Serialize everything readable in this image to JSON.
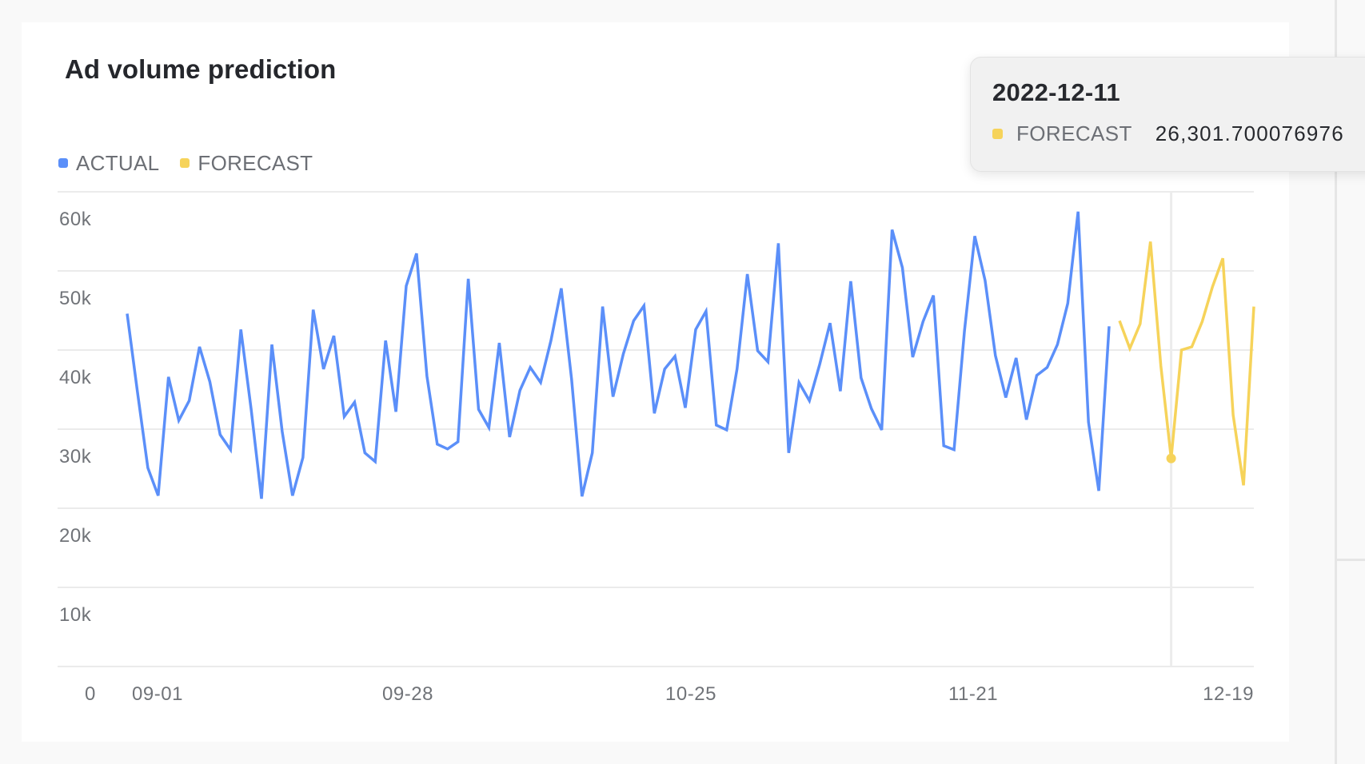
{
  "card": {
    "title": "Ad volume prediction"
  },
  "legend": [
    {
      "label": "ACTUAL",
      "color": "#5b8ff9"
    },
    {
      "label": "FORECAST",
      "color": "#f6d35a"
    }
  ],
  "tooltip": {
    "date": "2022-12-11",
    "series": "FORECAST",
    "value": "26,301.700076976",
    "color": "#f6d35a"
  },
  "chart_data": {
    "type": "line",
    "title": "Ad volume prediction",
    "xlabel": "",
    "ylabel": "",
    "ylim": [
      0,
      60000
    ],
    "y_ticks": [
      "0",
      "10k",
      "20k",
      "30k",
      "40k",
      "50k",
      "60k"
    ],
    "x_ticks": [
      "09-01",
      "09-28",
      "10-25",
      "11-21",
      "12-19"
    ],
    "x_start": "2022-09-01",
    "x_end": "2022-12-19",
    "grid": true,
    "legend_position": "top-left",
    "hover": {
      "index": 101,
      "date": "2022-12-11",
      "series": "FORECAST",
      "value": 26301.700076976
    },
    "series": [
      {
        "name": "ACTUAL",
        "color": "#5b8ff9",
        "start_index": 0,
        "values": [
          44600,
          34700,
          25100,
          21600,
          36600,
          31100,
          33600,
          40400,
          36000,
          29300,
          27400,
          42600,
          32500,
          21200,
          40700,
          29700,
          21600,
          26400,
          45100,
          37600,
          41800,
          31600,
          33400,
          27000,
          25900,
          41200,
          32200,
          48100,
          52200,
          36700,
          28100,
          27500,
          28400,
          49000,
          32500,
          30200,
          40900,
          29000,
          34900,
          37800,
          35900,
          41200,
          47800,
          36300,
          21500,
          27000,
          45500,
          34100,
          39500,
          43700,
          45600,
          32000,
          37600,
          39200,
          32700,
          42600,
          44900,
          30500,
          29900,
          37600,
          49600,
          39900,
          38500,
          53500,
          27000,
          35900,
          33600,
          38200,
          43400,
          34800,
          48700,
          36500,
          32600,
          29900,
          55200,
          50400,
          39100,
          43600,
          46900,
          27900,
          27400,
          42400,
          54400,
          48800,
          39300,
          34000,
          39000,
          31200,
          36800,
          37800,
          40700,
          45900,
          57500,
          30900,
          22200,
          43000
        ]
      },
      {
        "name": "FORECAST",
        "color": "#f6d35a",
        "start_index": 96,
        "values": [
          43700,
          40200,
          43300,
          53700,
          38000,
          26301.7,
          40000,
          40400,
          43600,
          48000,
          51600,
          31800,
          22900,
          45500
        ]
      }
    ]
  }
}
